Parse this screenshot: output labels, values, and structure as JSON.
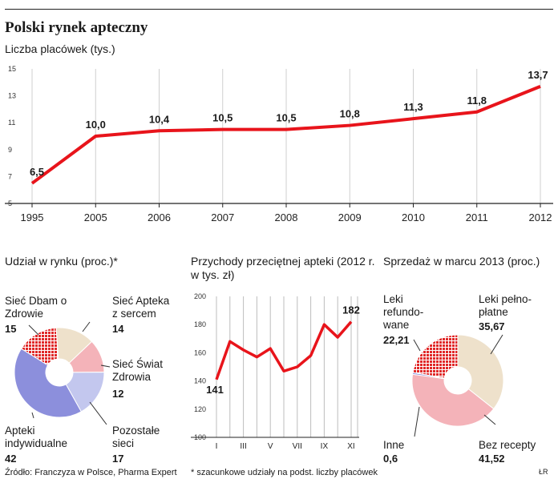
{
  "title": "Polski rynek apteczny",
  "main_chart": {
    "subtitle": "Liczba placówek (tys.)",
    "chart_data": {
      "type": "line",
      "x": [
        "1995",
        "2005",
        "2006",
        "2007",
        "2008",
        "2009",
        "2010",
        "2011",
        "2012"
      ],
      "y": [
        6.5,
        10.0,
        10.4,
        10.5,
        10.5,
        10.8,
        11.3,
        11.8,
        13.7
      ],
      "data_labels": [
        "6,5",
        "10,0",
        "10,4",
        "10,5",
        "10,5",
        "10,8",
        "11,3",
        "11,8",
        "13,7"
      ],
      "y_ticks": [
        "15",
        "13",
        "11",
        "9",
        "7",
        "5"
      ],
      "ylim": [
        5,
        15
      ],
      "grid": "vertical",
      "color": "#e8141b"
    }
  },
  "share_chart": {
    "title": "Udział w rynku (proc.)*",
    "chart_data": {
      "type": "pie",
      "slices": [
        {
          "name": "Sieć Dbam o Zdrowie",
          "value": 15,
          "label": "15",
          "color": "#e02828",
          "pattern": "grid"
        },
        {
          "name": "Sieć Apteka z sercem",
          "value": 14,
          "label": "14",
          "color": "#eee1cb"
        },
        {
          "name": "Sieć Świat Zdrowia",
          "value": 12,
          "label": "12",
          "color": "#f4b3b9"
        },
        {
          "name": "Pozostałe sieci",
          "value": 17,
          "label": "17",
          "color": "#c3c7ee"
        },
        {
          "name": "Apteki indywidualne",
          "value": 42,
          "label": "42",
          "color": "#8c8fdc"
        }
      ]
    }
  },
  "revenue_chart": {
    "title": "Przychody przeciętnej apteki (2012 r. w tys. zł)",
    "chart_data": {
      "type": "line",
      "x_ticks": [
        "I",
        "III",
        "V",
        "VII",
        "IX",
        "XI"
      ],
      "y_ticks": [
        "200",
        "180",
        "160",
        "140",
        "120",
        "100"
      ],
      "ylim": [
        100,
        200
      ],
      "y": [
        141,
        168,
        162,
        157,
        163,
        147,
        150,
        158,
        180,
        171,
        182
      ],
      "start_label": "141",
      "end_label": "182",
      "color": "#e8141b"
    }
  },
  "sales_chart": {
    "title": "Sprzedaż w marcu 2013 (proc.)",
    "chart_data": {
      "type": "pie",
      "slices": [
        {
          "name": "Leki refundo-wane",
          "value": 22.21,
          "label": "22,21",
          "color": "#e02828",
          "pattern": "grid"
        },
        {
          "name": "Leki pełno-płatne",
          "value": 35.67,
          "label": "35,67",
          "color": "#eee1cb"
        },
        {
          "name": "Bez recepty",
          "value": 41.52,
          "label": "41,52",
          "color": "#f4b3b9"
        },
        {
          "name": "Inne",
          "value": 0.6,
          "label": "0,6",
          "color": "#8c8fdc"
        }
      ]
    }
  },
  "footer": {
    "source": "Źródło: Franczyza w Polsce, Pharma Expert",
    "note": "* szacunkowe udziały na podst. liczby placówek",
    "credit": "ŁR"
  }
}
